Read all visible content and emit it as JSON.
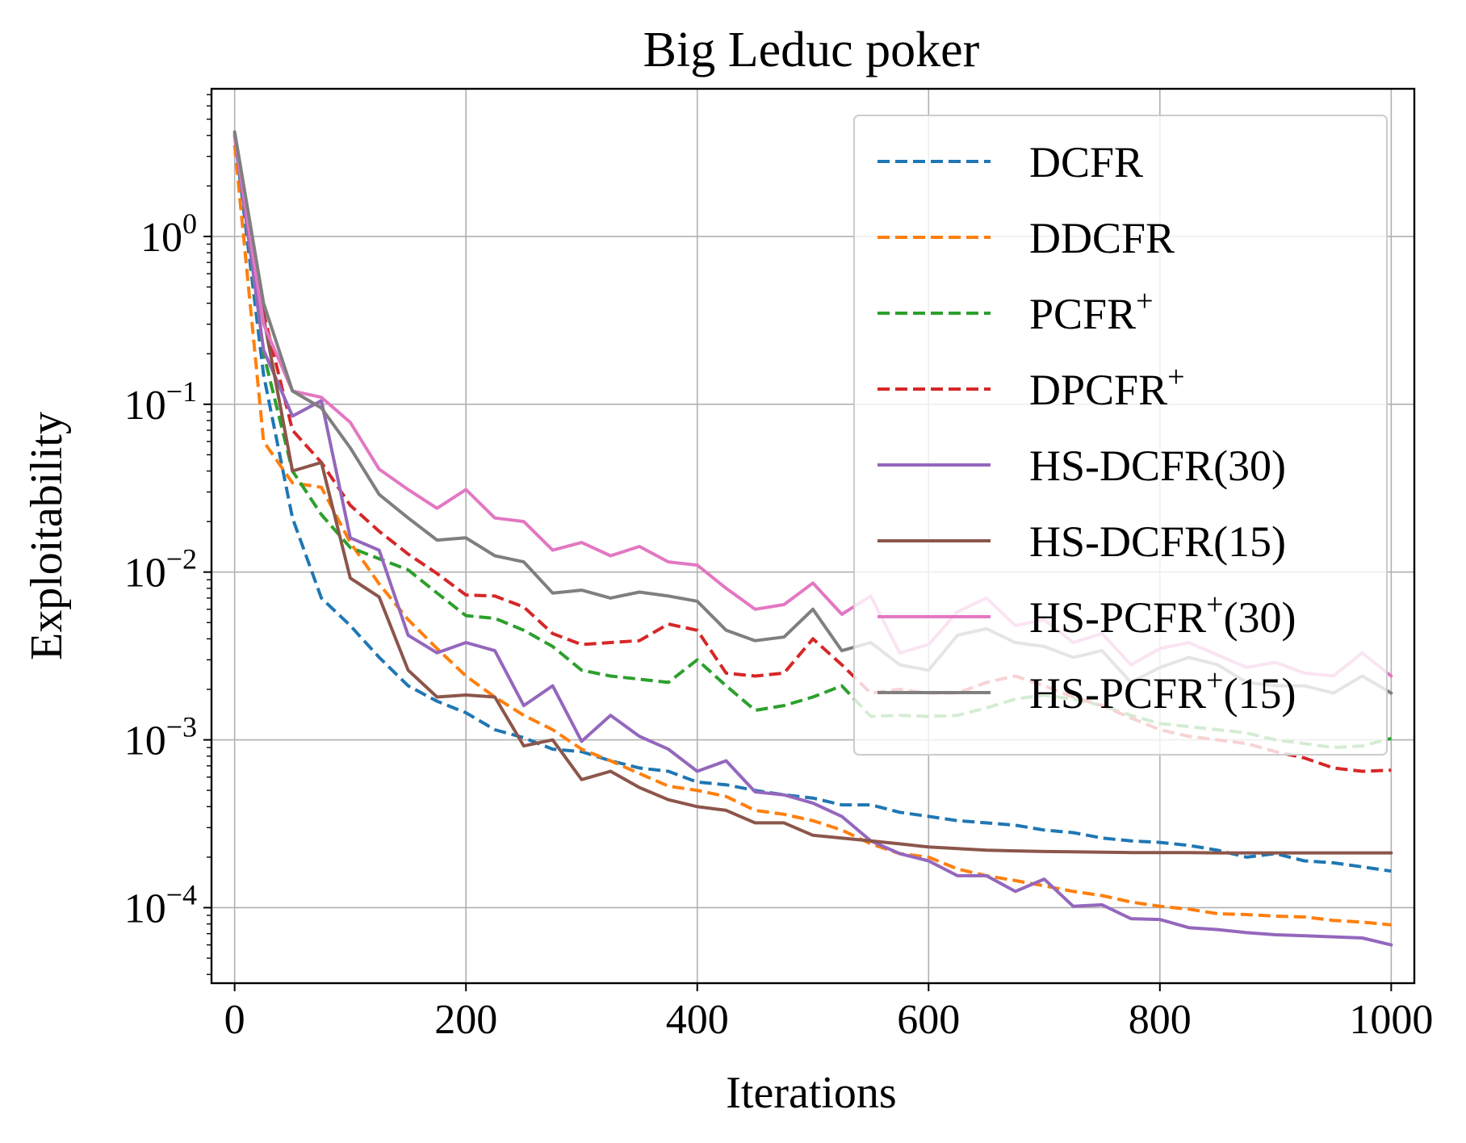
{
  "chart_data": {
    "type": "line",
    "title": "Big Leduc poker",
    "xlabel": "Iterations",
    "ylabel": "Exploitability",
    "xlim": [
      -20,
      1020
    ],
    "ylim_log10": [
      -4.45,
      0.88
    ],
    "yscale": "log",
    "grid": true,
    "legend_position": "top-right",
    "x_ticks": [
      0,
      200,
      400,
      600,
      800,
      1000
    ],
    "x_tick_labels": [
      "0",
      "200",
      "400",
      "600",
      "800",
      "1000"
    ],
    "y_ticks": [
      {
        "value": 1,
        "base": "10",
        "exponent": "0"
      },
      {
        "value": 0.1,
        "base": "10",
        "exponent": "−1"
      },
      {
        "value": 0.01,
        "base": "10",
        "exponent": "−2"
      },
      {
        "value": 0.001,
        "base": "10",
        "exponent": "−3"
      },
      {
        "value": 0.0001,
        "base": "10",
        "exponent": "−4"
      }
    ],
    "x": [
      0,
      25,
      50,
      75,
      100,
      125,
      150,
      175,
      200,
      225,
      250,
      275,
      300,
      325,
      350,
      375,
      400,
      425,
      450,
      475,
      500,
      525,
      550,
      575,
      600,
      625,
      650,
      675,
      700,
      725,
      750,
      775,
      800,
      825,
      850,
      875,
      900,
      925,
      950,
      975,
      1000
    ],
    "series": [
      {
        "name": "DCFR",
        "legend": {
          "main": "DCFR",
          "sup": "",
          "tail": ""
        },
        "color": "#1f77b4",
        "dashed": true,
        "values": [
          4.0,
          0.15,
          0.021,
          0.007,
          0.0048,
          0.0031,
          0.0021,
          0.0017,
          0.00145,
          0.00115,
          0.00103,
          0.00088,
          0.00085,
          0.00075,
          0.00068,
          0.00065,
          0.00056,
          0.00054,
          0.0005,
          0.00047,
          0.00045,
          0.00041,
          0.00041,
          0.00037,
          0.00035,
          0.00033,
          0.00032,
          0.00031,
          0.00029,
          0.00028,
          0.00026,
          0.00025,
          0.000245,
          0.000235,
          0.00022,
          0.0002,
          0.00021,
          0.00019,
          0.000185,
          0.000175,
          0.000165
        ]
      },
      {
        "name": "DDCFR",
        "legend": {
          "main": "DDCFR",
          "sup": "",
          "tail": ""
        },
        "color": "#ff7f0e",
        "dashed": true,
        "values": [
          3.5,
          0.06,
          0.034,
          0.032,
          0.015,
          0.0085,
          0.0052,
          0.0035,
          0.0024,
          0.0018,
          0.0014,
          0.00115,
          0.00088,
          0.00075,
          0.00063,
          0.00053,
          0.0005,
          0.00046,
          0.00038,
          0.00036,
          0.00033,
          0.00029,
          0.00024,
          0.00021,
          0.0002,
          0.00017,
          0.000155,
          0.000145,
          0.000135,
          0.000125,
          0.000118,
          0.000108,
          0.000102,
          9.8e-05,
          9.2e-05,
          9.1e-05,
          8.9e-05,
          8.8e-05,
          8.4e-05,
          8.2e-05,
          7.9e-05
        ]
      },
      {
        "name": "PCFR+",
        "legend": {
          "main": "PCFR",
          "sup": "+",
          "tail": ""
        },
        "color": "#2ca02c",
        "dashed": true,
        "values": [
          4.0,
          0.2,
          0.04,
          0.022,
          0.014,
          0.012,
          0.0103,
          0.0075,
          0.0055,
          0.0053,
          0.0045,
          0.0036,
          0.0026,
          0.0024,
          0.0023,
          0.0022,
          0.003,
          0.0021,
          0.0015,
          0.0016,
          0.0018,
          0.0021,
          0.00138,
          0.0014,
          0.00138,
          0.0014,
          0.00155,
          0.00175,
          0.00185,
          0.00175,
          0.0016,
          0.0014,
          0.00125,
          0.0012,
          0.00115,
          0.0011,
          0.001,
          0.00095,
          0.0009,
          0.00092,
          0.00102
        ]
      },
      {
        "name": "DPCFR+",
        "legend": {
          "main": "DPCFR",
          "sup": "+",
          "tail": ""
        },
        "color": "#d62728",
        "dashed": true,
        "values": [
          4.0,
          0.35,
          0.07,
          0.045,
          0.025,
          0.0175,
          0.0128,
          0.0098,
          0.0073,
          0.0072,
          0.0062,
          0.0043,
          0.0037,
          0.0038,
          0.0039,
          0.0049,
          0.0045,
          0.0025,
          0.0024,
          0.0025,
          0.004,
          0.0028,
          0.0019,
          0.002,
          0.0019,
          0.0019,
          0.0022,
          0.0024,
          0.0021,
          0.0018,
          0.0016,
          0.00135,
          0.00115,
          0.00105,
          0.001,
          0.00095,
          0.00085,
          0.00078,
          0.00068,
          0.00065,
          0.00066
        ]
      },
      {
        "name": "HS-DCFR(30)",
        "legend": {
          "main": "HS-DCFR(30)",
          "sup": "",
          "tail": ""
        },
        "color": "#9467bd",
        "dashed": false,
        "values": [
          4.0,
          0.21,
          0.085,
          0.105,
          0.016,
          0.0135,
          0.0042,
          0.0033,
          0.0038,
          0.0034,
          0.0016,
          0.0021,
          0.00098,
          0.0014,
          0.00105,
          0.00088,
          0.00065,
          0.00075,
          0.00049,
          0.00047,
          0.00042,
          0.00035,
          0.00025,
          0.00021,
          0.00019,
          0.000155,
          0.000155,
          0.000125,
          0.000148,
          0.000102,
          0.000104,
          8.6e-05,
          8.5e-05,
          7.6e-05,
          7.4e-05,
          7.1e-05,
          6.9e-05,
          6.8e-05,
          6.7e-05,
          6.6e-05,
          6e-05
        ]
      },
      {
        "name": "HS-DCFR(15)",
        "legend": {
          "main": "HS-DCFR(15)",
          "sup": "",
          "tail": ""
        },
        "color": "#8c564b",
        "dashed": false,
        "values": [
          4.1,
          0.33,
          0.04,
          0.045,
          0.0092,
          0.0071,
          0.0026,
          0.0018,
          0.00185,
          0.0018,
          0.00092,
          0.001,
          0.00058,
          0.00065,
          0.00052,
          0.00044,
          0.0004,
          0.00038,
          0.00032,
          0.00032,
          0.00027,
          0.00026,
          0.00025,
          0.00024,
          0.00023,
          0.000225,
          0.00022,
          0.000218,
          0.000216,
          0.000215,
          0.000214,
          0.000213,
          0.000213,
          0.000213,
          0.000212,
          0.000212,
          0.000212,
          0.000212,
          0.000212,
          0.000212,
          0.000212
        ]
      },
      {
        "name": "HS-PCFR+(30)",
        "legend": {
          "main": "HS-PCFR",
          "sup": "+",
          "tail": "(30)"
        },
        "color": "#e377c2",
        "dashed": false,
        "values": [
          4.0,
          0.3,
          0.12,
          0.11,
          0.078,
          0.041,
          0.031,
          0.024,
          0.031,
          0.021,
          0.02,
          0.0135,
          0.015,
          0.0125,
          0.0142,
          0.0115,
          0.011,
          0.008,
          0.006,
          0.0064,
          0.0086,
          0.0056,
          0.0072,
          0.0033,
          0.0037,
          0.0058,
          0.007,
          0.0048,
          0.0052,
          0.0038,
          0.0043,
          0.0028,
          0.0035,
          0.0038,
          0.0032,
          0.0027,
          0.0029,
          0.0025,
          0.0024,
          0.0033,
          0.0024
        ]
      },
      {
        "name": "HS-PCFR+(15)",
        "legend": {
          "main": "HS-PCFR",
          "sup": "+",
          "tail": "(15)"
        },
        "color": "#7f7f7f",
        "dashed": false,
        "values": [
          4.2,
          0.4,
          0.12,
          0.095,
          0.055,
          0.029,
          0.021,
          0.0155,
          0.016,
          0.0125,
          0.0115,
          0.0075,
          0.0078,
          0.007,
          0.0076,
          0.0072,
          0.0067,
          0.0045,
          0.0039,
          0.0041,
          0.006,
          0.0034,
          0.0038,
          0.0028,
          0.0026,
          0.0042,
          0.0046,
          0.0038,
          0.0036,
          0.0031,
          0.0034,
          0.0022,
          0.0027,
          0.0031,
          0.0028,
          0.0022,
          0.0021,
          0.0021,
          0.0019,
          0.0024,
          0.0019
        ]
      }
    ]
  }
}
